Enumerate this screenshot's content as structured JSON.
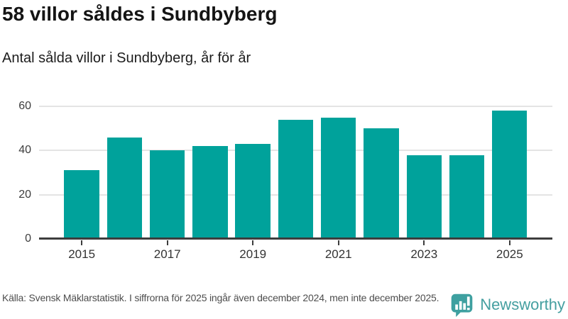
{
  "header": {
    "title": "58 villor såldes i Sundbyberg",
    "subtitle": "Antal sålda villor i Sundbyberg, år för år"
  },
  "chart_data": {
    "type": "bar",
    "categories": [
      2015,
      2016,
      2017,
      2018,
      2019,
      2020,
      2021,
      2022,
      2023,
      2024,
      2025
    ],
    "values": [
      31,
      46,
      40,
      42,
      43,
      54,
      55,
      50,
      38,
      38,
      58
    ],
    "title": "58 villor såldes i Sundbyberg",
    "subtitle": "Antal sålda villor i Sundbyberg, år för år",
    "xlabel": "",
    "ylabel": "",
    "ylim": [
      0,
      60
    ],
    "y_ticks": [
      0,
      20,
      40,
      60
    ],
    "x_tick_labels": [
      "2015",
      "2017",
      "2019",
      "2021",
      "2023",
      "2025"
    ],
    "grid": true,
    "legend": false,
    "bar_color": "#00A29B"
  },
  "footer": {
    "source": "Källa: Svensk Mäklarstatistik. I siffrorna för 2025 ingår även december 2024, men inte december 2025.",
    "brand": "Newsworthy"
  },
  "colors": {
    "bar": "#00A29B",
    "grid": "#e4e4e4",
    "axis": "#3d3d3d",
    "brand_teal": "#459fa0",
    "text_dark": "#141414",
    "text_gray": "#4d4d4d"
  }
}
